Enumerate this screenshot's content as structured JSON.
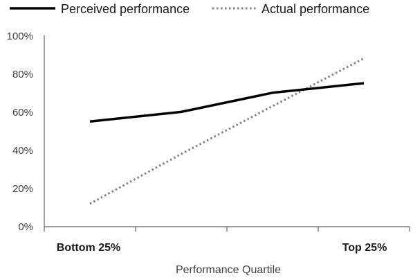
{
  "chart_data": {
    "type": "line",
    "categories": [
      "Bottom 25%",
      "",
      "",
      "Top 25%"
    ],
    "series": [
      {
        "name": "Perceived performance",
        "values": [
          55,
          60,
          70,
          75
        ],
        "style": "solid",
        "color": "#000000"
      },
      {
        "name": "Actual performance",
        "values": [
          12,
          38,
          63,
          88
        ],
        "style": "dotted",
        "color": "#808080"
      }
    ],
    "y_ticks": [
      "0%",
      "20%",
      "40%",
      "60%",
      "80%",
      "100%"
    ],
    "ylim": [
      0,
      100
    ],
    "xlabel": "Performance Quartile",
    "ylabel": "",
    "title": "",
    "grid": false,
    "legend_position": "top"
  }
}
